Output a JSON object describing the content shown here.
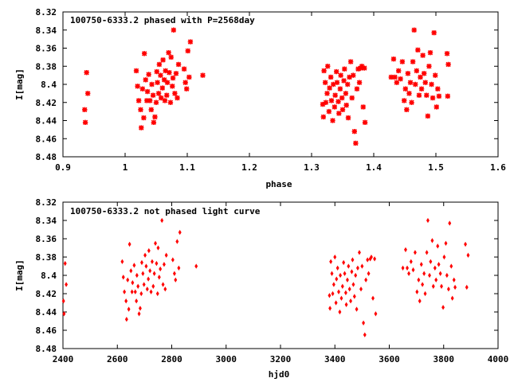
{
  "chart_data": [
    {
      "type": "scatter",
      "title": "100750-6333.2 phased with P=2568day",
      "xlabel": "phase",
      "ylabel": "I[mag]",
      "xlim": [
        0.9,
        1.6
      ],
      "ylim": [
        8.48,
        8.32
      ],
      "y_reversed": true,
      "grid": false,
      "marker_color": "#ff0000",
      "xticks": [
        "0.9",
        "1",
        "1.1",
        "1.2",
        "1.3",
        "1.4",
        "1.5",
        "1.6"
      ],
      "yticks": [
        "8.32",
        "8.34",
        "8.36",
        "8.38",
        "8.4",
        "8.42",
        "8.44",
        "8.46",
        "8.48"
      ],
      "points": [
        [
          0.935,
          8.428
        ],
        [
          0.936,
          8.442
        ],
        [
          0.938,
          8.387
        ],
        [
          0.94,
          8.41
        ],
        [
          1.018,
          8.385
        ],
        [
          1.02,
          8.402
        ],
        [
          1.022,
          8.418
        ],
        [
          1.025,
          8.428
        ],
        [
          1.026,
          8.448
        ],
        [
          1.028,
          8.405
        ],
        [
          1.03,
          8.437
        ],
        [
          1.031,
          8.366
        ],
        [
          1.033,
          8.395
        ],
        [
          1.035,
          8.418
        ],
        [
          1.036,
          8.408
        ],
        [
          1.038,
          8.389
        ],
        [
          1.04,
          8.418
        ],
        [
          1.042,
          8.428
        ],
        [
          1.043,
          8.4
        ],
        [
          1.045,
          8.412
        ],
        [
          1.046,
          8.442
        ],
        [
          1.048,
          8.436
        ],
        [
          1.05,
          8.42
        ],
        [
          1.051,
          8.386
        ],
        [
          1.052,
          8.398
        ],
        [
          1.054,
          8.41
        ],
        [
          1.055,
          8.378
        ],
        [
          1.057,
          8.39
        ],
        [
          1.058,
          8.415
        ],
        [
          1.06,
          8.404
        ],
        [
          1.061,
          8.373
        ],
        [
          1.063,
          8.395
        ],
        [
          1.064,
          8.418
        ],
        [
          1.065,
          8.385
        ],
        [
          1.067,
          8.412
        ],
        [
          1.068,
          8.398
        ],
        [
          1.07,
          8.365
        ],
        [
          1.071,
          8.387
        ],
        [
          1.073,
          8.42
        ],
        [
          1.074,
          8.37
        ],
        [
          1.076,
          8.402
        ],
        [
          1.077,
          8.393
        ],
        [
          1.078,
          8.34
        ],
        [
          1.08,
          8.41
        ],
        [
          1.082,
          8.388
        ],
        [
          1.084,
          8.415
        ],
        [
          1.086,
          8.378
        ],
        [
          1.095,
          8.383
        ],
        [
          1.097,
          8.398
        ],
        [
          1.099,
          8.405
        ],
        [
          1.101,
          8.363
        ],
        [
          1.103,
          8.392
        ],
        [
          1.105,
          8.353
        ],
        [
          1.125,
          8.39
        ],
        [
          1.318,
          8.422
        ],
        [
          1.319,
          8.436
        ],
        [
          1.32,
          8.385
        ],
        [
          1.322,
          8.398
        ],
        [
          1.323,
          8.42
        ],
        [
          1.325,
          8.41
        ],
        [
          1.326,
          8.38
        ],
        [
          1.328,
          8.43
        ],
        [
          1.329,
          8.404
        ],
        [
          1.331,
          8.392
        ],
        [
          1.332,
          8.418
        ],
        [
          1.334,
          8.44
        ],
        [
          1.335,
          8.4
        ],
        [
          1.337,
          8.425
        ],
        [
          1.338,
          8.412
        ],
        [
          1.34,
          8.386
        ],
        [
          1.341,
          8.398
        ],
        [
          1.343,
          8.419
        ],
        [
          1.344,
          8.432
        ],
        [
          1.346,
          8.405
        ],
        [
          1.347,
          8.39
        ],
        [
          1.349,
          8.415
        ],
        [
          1.35,
          8.428
        ],
        [
          1.352,
          8.396
        ],
        [
          1.353,
          8.383
        ],
        [
          1.355,
          8.41
        ],
        [
          1.356,
          8.423
        ],
        [
          1.358,
          8.4
        ],
        [
          1.359,
          8.437
        ],
        [
          1.361,
          8.392
        ],
        [
          1.363,
          8.375
        ],
        [
          1.365,
          8.415
        ],
        [
          1.367,
          8.39
        ],
        [
          1.369,
          8.452
        ],
        [
          1.371,
          8.465
        ],
        [
          1.373,
          8.405
        ],
        [
          1.375,
          8.383
        ],
        [
          1.377,
          8.398
        ],
        [
          1.379,
          8.382
        ],
        [
          1.381,
          8.38
        ],
        [
          1.383,
          8.425
        ],
        [
          1.385,
          8.382
        ],
        [
          1.386,
          8.442
        ],
        [
          1.428,
          8.392
        ],
        [
          1.432,
          8.372
        ],
        [
          1.434,
          8.392
        ],
        [
          1.437,
          8.398
        ],
        [
          1.44,
          8.385
        ],
        [
          1.443,
          8.394
        ],
        [
          1.446,
          8.375
        ],
        [
          1.449,
          8.418
        ],
        [
          1.451,
          8.405
        ],
        [
          1.453,
          8.428
        ],
        [
          1.455,
          8.388
        ],
        [
          1.457,
          8.41
        ],
        [
          1.459,
          8.398
        ],
        [
          1.461,
          8.42
        ],
        [
          1.463,
          8.375
        ],
        [
          1.465,
          8.34
        ],
        [
          1.467,
          8.4
        ],
        [
          1.469,
          8.385
        ],
        [
          1.471,
          8.362
        ],
        [
          1.473,
          8.412
        ],
        [
          1.475,
          8.392
        ],
        [
          1.477,
          8.405
        ],
        [
          1.479,
          8.368
        ],
        [
          1.481,
          8.388
        ],
        [
          1.483,
          8.398
        ],
        [
          1.485,
          8.412
        ],
        [
          1.487,
          8.435
        ],
        [
          1.489,
          8.38
        ],
        [
          1.491,
          8.365
        ],
        [
          1.493,
          8.4
        ],
        [
          1.495,
          8.415
        ],
        [
          1.497,
          8.343
        ],
        [
          1.499,
          8.39
        ],
        [
          1.501,
          8.425
        ],
        [
          1.503,
          8.405
        ],
        [
          1.505,
          8.413
        ],
        [
          1.518,
          8.366
        ],
        [
          1.519,
          8.413
        ],
        [
          1.52,
          8.378
        ]
      ]
    },
    {
      "type": "scatter",
      "title": "100750-6333.2 not phased light curve",
      "xlabel": "hjd0",
      "ylabel": "I[mag]",
      "xlim": [
        2400,
        4000
      ],
      "ylim": [
        8.48,
        8.32
      ],
      "y_reversed": true,
      "grid": false,
      "marker_color": "#ff0000",
      "xticks": [
        "2400",
        "2600",
        "2800",
        "3000",
        "3200",
        "3400",
        "3600",
        "3800",
        "4000"
      ],
      "yticks": [
        "8.32",
        "8.34",
        "8.36",
        "8.38",
        "8.4",
        "8.42",
        "8.44",
        "8.46",
        "8.48"
      ],
      "points": [
        [
          2402,
          8.428
        ],
        [
          2404,
          8.442
        ],
        [
          2408,
          8.387
        ],
        [
          2412,
          8.41
        ],
        [
          2618,
          8.385
        ],
        [
          2622,
          8.402
        ],
        [
          2626,
          8.418
        ],
        [
          2632,
          8.428
        ],
        [
          2634,
          8.448
        ],
        [
          2638,
          8.405
        ],
        [
          2642,
          8.437
        ],
        [
          2645,
          8.366
        ],
        [
          2650,
          8.395
        ],
        [
          2654,
          8.418
        ],
        [
          2656,
          8.408
        ],
        [
          2662,
          8.389
        ],
        [
          2666,
          8.418
        ],
        [
          2670,
          8.428
        ],
        [
          2672,
          8.4
        ],
        [
          2676,
          8.412
        ],
        [
          2680,
          8.442
        ],
        [
          2684,
          8.436
        ],
        [
          2688,
          8.42
        ],
        [
          2690,
          8.386
        ],
        [
          2694,
          8.398
        ],
        [
          2698,
          8.41
        ],
        [
          2702,
          8.378
        ],
        [
          2706,
          8.39
        ],
        [
          2710,
          8.415
        ],
        [
          2714,
          8.404
        ],
        [
          2716,
          8.373
        ],
        [
          2720,
          8.395
        ],
        [
          2724,
          8.418
        ],
        [
          2728,
          8.385
        ],
        [
          2732,
          8.412
        ],
        [
          2736,
          8.398
        ],
        [
          2740,
          8.365
        ],
        [
          2744,
          8.387
        ],
        [
          2748,
          8.42
        ],
        [
          2750,
          8.37
        ],
        [
          2754,
          8.402
        ],
        [
          2758,
          8.393
        ],
        [
          2764,
          8.34
        ],
        [
          2768,
          8.41
        ],
        [
          2772,
          8.388
        ],
        [
          2776,
          8.415
        ],
        [
          2780,
          8.378
        ],
        [
          2804,
          8.383
        ],
        [
          2810,
          8.398
        ],
        [
          2814,
          8.405
        ],
        [
          2820,
          8.363
        ],
        [
          2826,
          8.392
        ],
        [
          2830,
          8.353
        ],
        [
          2890,
          8.39
        ],
        [
          3380,
          8.422
        ],
        [
          3382,
          8.436
        ],
        [
          3385,
          8.385
        ],
        [
          3389,
          8.398
        ],
        [
          3392,
          8.42
        ],
        [
          3396,
          8.41
        ],
        [
          3400,
          8.38
        ],
        [
          3404,
          8.43
        ],
        [
          3406,
          8.404
        ],
        [
          3410,
          8.392
        ],
        [
          3414,
          8.418
        ],
        [
          3418,
          8.44
        ],
        [
          3420,
          8.4
        ],
        [
          3424,
          8.425
        ],
        [
          3428,
          8.412
        ],
        [
          3432,
          8.386
        ],
        [
          3436,
          8.398
        ],
        [
          3440,
          8.419
        ],
        [
          3442,
          8.432
        ],
        [
          3446,
          8.405
        ],
        [
          3450,
          8.39
        ],
        [
          3454,
          8.415
        ],
        [
          3458,
          8.428
        ],
        [
          3462,
          8.396
        ],
        [
          3465,
          8.383
        ],
        [
          3468,
          8.41
        ],
        [
          3472,
          8.423
        ],
        [
          3476,
          8.4
        ],
        [
          3480,
          8.437
        ],
        [
          3484,
          8.392
        ],
        [
          3490,
          8.375
        ],
        [
          3496,
          8.415
        ],
        [
          3500,
          8.39
        ],
        [
          3505,
          8.452
        ],
        [
          3510,
          8.465
        ],
        [
          3514,
          8.405
        ],
        [
          3520,
          8.383
        ],
        [
          3524,
          8.398
        ],
        [
          3530,
          8.382
        ],
        [
          3534,
          8.38
        ],
        [
          3540,
          8.425
        ],
        [
          3546,
          8.382
        ],
        [
          3550,
          8.442
        ],
        [
          3650,
          8.392
        ],
        [
          3660,
          8.372
        ],
        [
          3666,
          8.392
        ],
        [
          3672,
          8.398
        ],
        [
          3680,
          8.385
        ],
        [
          3688,
          8.394
        ],
        [
          3695,
          8.375
        ],
        [
          3702,
          8.418
        ],
        [
          3708,
          8.405
        ],
        [
          3712,
          8.428
        ],
        [
          3718,
          8.388
        ],
        [
          3722,
          8.41
        ],
        [
          3728,
          8.398
        ],
        [
          3732,
          8.42
        ],
        [
          3738,
          8.375
        ],
        [
          3742,
          8.34
        ],
        [
          3748,
          8.4
        ],
        [
          3752,
          8.385
        ],
        [
          3758,
          8.362
        ],
        [
          3762,
          8.412
        ],
        [
          3768,
          8.392
        ],
        [
          3772,
          8.405
        ],
        [
          3778,
          8.368
        ],
        [
          3782,
          8.388
        ],
        [
          3788,
          8.398
        ],
        [
          3792,
          8.412
        ],
        [
          3798,
          8.435
        ],
        [
          3802,
          8.38
        ],
        [
          3808,
          8.365
        ],
        [
          3812,
          8.4
        ],
        [
          3818,
          8.415
        ],
        [
          3822,
          8.343
        ],
        [
          3828,
          8.39
        ],
        [
          3832,
          8.425
        ],
        [
          3838,
          8.405
        ],
        [
          3842,
          8.413
        ],
        [
          3880,
          8.366
        ],
        [
          3885,
          8.413
        ],
        [
          3890,
          8.378
        ]
      ]
    }
  ]
}
